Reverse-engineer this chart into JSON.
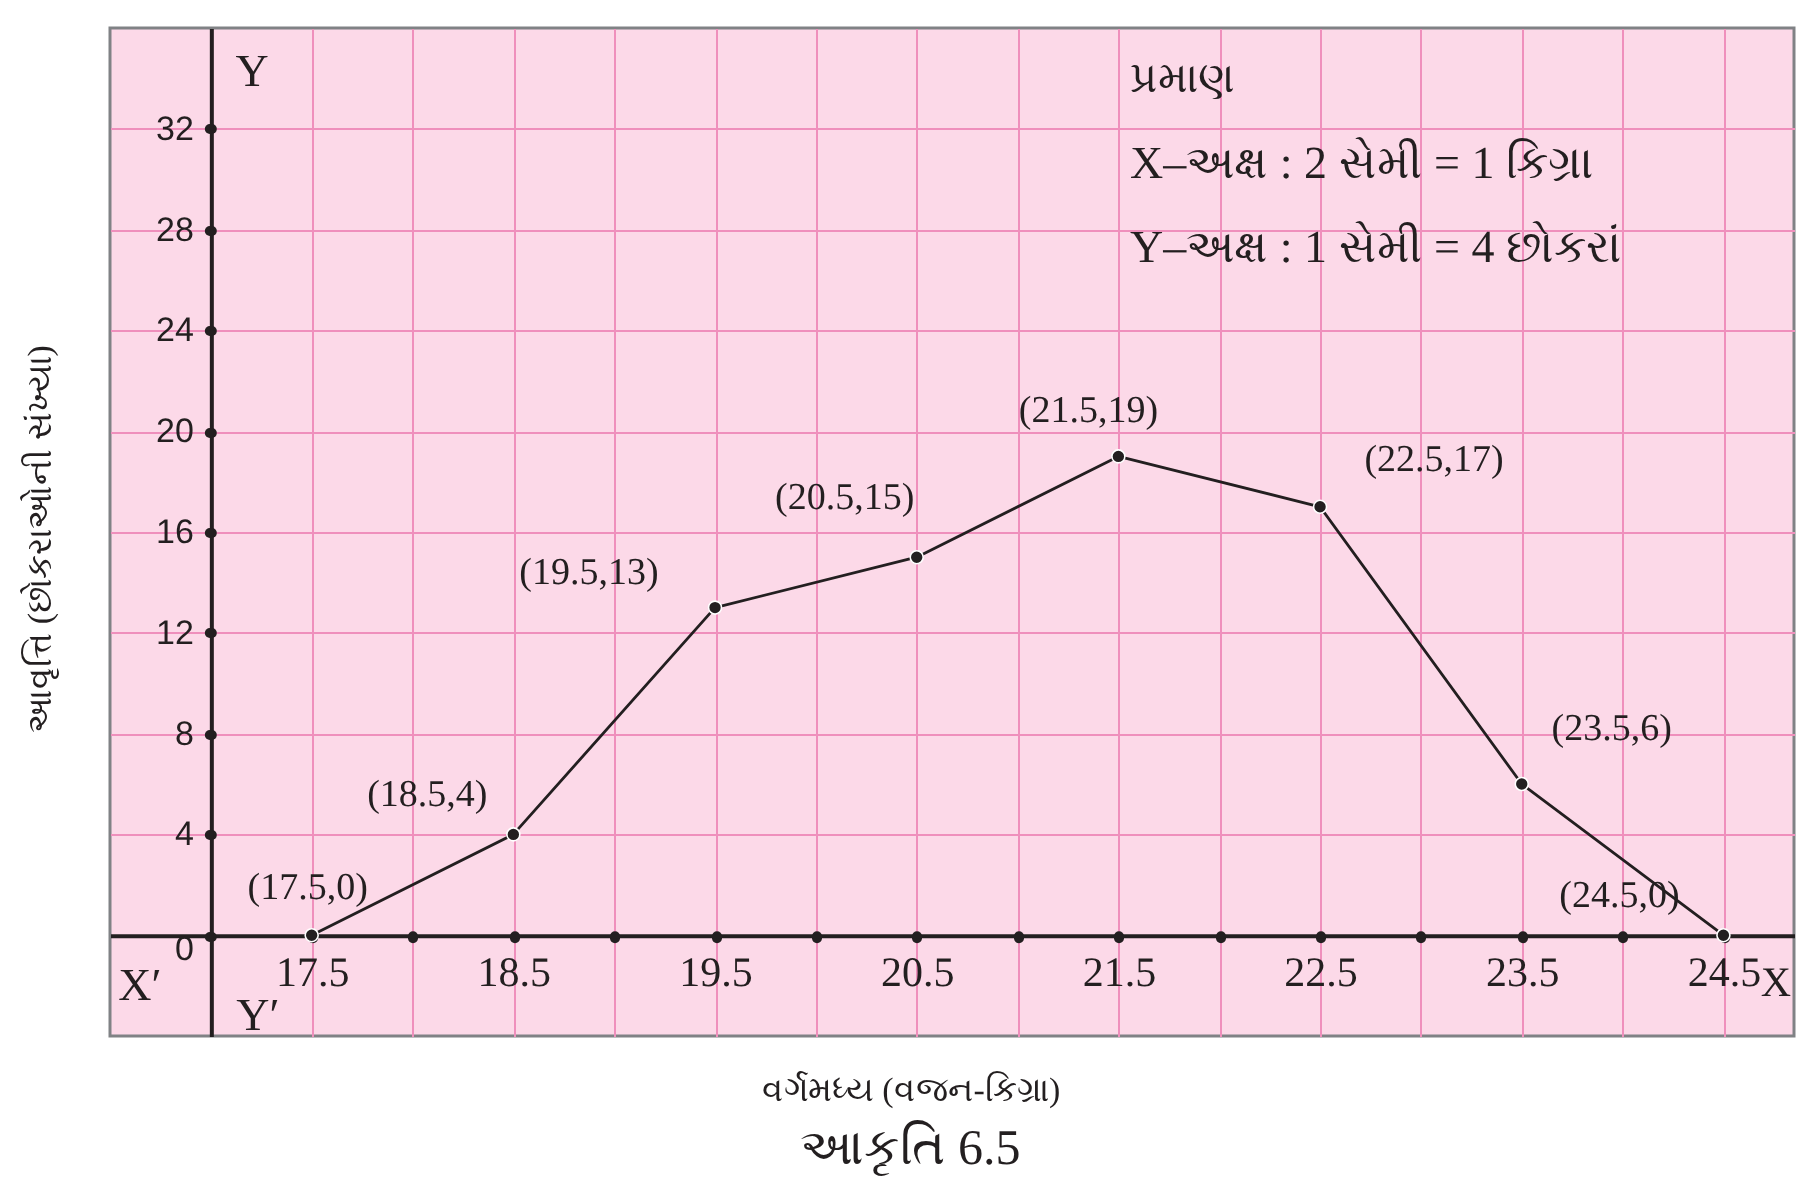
{
  "chart_data": {
    "type": "line",
    "annotations": [
      "પ્રમાણ",
      "X–અક્ષ : 2 સેમી = 1 કિગ્રા",
      "Y–અક્ષ : 1 સેમી = 4 છોકરાં",
      "X",
      "X′",
      "Y",
      "Y′",
      "આકૃતિ 6.5"
    ],
    "xlabel": "વર્ગમધ્ય (વજન-કિગ્રા)",
    "ylabel": "આવૃત્તિ (છોકરાઓની સંખ્યા)",
    "x": [
      17.5,
      18.5,
      19.5,
      20.5,
      21.5,
      22.5,
      23.5,
      24.5
    ],
    "values": [
      0,
      4,
      13,
      15,
      19,
      17,
      6,
      0
    ],
    "value_labels": [
      "(17.5,0)",
      "(18.5,4)",
      "(19.5,13)",
      "(20.5,15)",
      "(21.5,19)",
      "(22.5,17)",
      "(23.5,6)",
      "(24.5,0)"
    ],
    "color": "#231f20",
    "marker": "circle",
    "line_style": "solid",
    "xlim": [
      16.5,
      24.85
    ],
    "ylim": [
      -4,
      36
    ],
    "xticks": [
      17.5,
      {
        "value": 18,
        "label": null
      },
      18.5,
      {
        "value": 19,
        "label": null
      },
      19.5,
      {
        "value": 20,
        "label": null
      },
      20.5,
      {
        "value": 21,
        "label": null
      },
      21.5,
      {
        "value": 22,
        "label": null
      },
      22.5,
      {
        "value": 23,
        "label": null
      },
      23.5,
      {
        "value": 24,
        "label": null
      },
      24.5
    ],
    "yticks": [
      0,
      4,
      8,
      12,
      16,
      20,
      24,
      28,
      32
    ],
    "grid": true
  }
}
